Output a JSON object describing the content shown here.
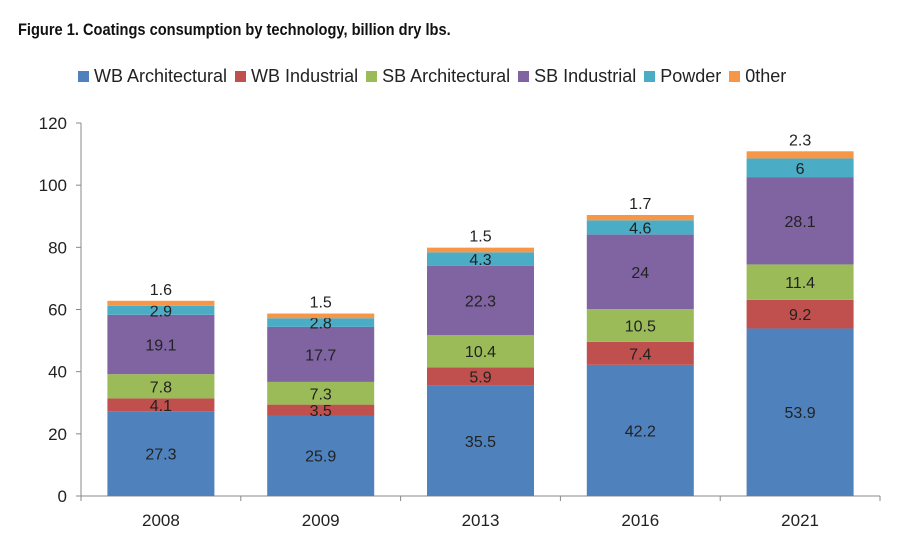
{
  "chart_data": {
    "type": "bar",
    "stacked": true,
    "title": "Figure 1. Coatings consumption by technology, billion dry lbs.",
    "xlabel": "",
    "ylabel": "",
    "ylim": [
      0,
      120
    ],
    "yticks": [
      0,
      20,
      40,
      60,
      80,
      100,
      120
    ],
    "categories": [
      "2008",
      "2009",
      "2013",
      "2016",
      "2021"
    ],
    "legend_position": "top",
    "grid": false,
    "series": [
      {
        "name": "WB Architectural",
        "color": "#4f81bd",
        "values": [
          27.3,
          25.9,
          35.5,
          42.2,
          53.9
        ]
      },
      {
        "name": "WB Industrial",
        "color": "#c0504d",
        "values": [
          4.1,
          3.5,
          5.9,
          7.4,
          9.2
        ]
      },
      {
        "name": "SB Architectural",
        "color": "#9bbb59",
        "values": [
          7.8,
          7.3,
          10.4,
          10.5,
          11.4
        ]
      },
      {
        "name": "SB Industrial",
        "color": "#8064a2",
        "values": [
          19.1,
          17.7,
          22.3,
          24,
          28.1
        ]
      },
      {
        "name": "Powder",
        "color": "#4bacc6",
        "values": [
          2.9,
          2.8,
          4.3,
          4.6,
          6
        ]
      },
      {
        "name": "0ther",
        "color": "#f79646",
        "values": [
          1.6,
          1.5,
          1.5,
          1.7,
          2.3
        ]
      }
    ]
  }
}
